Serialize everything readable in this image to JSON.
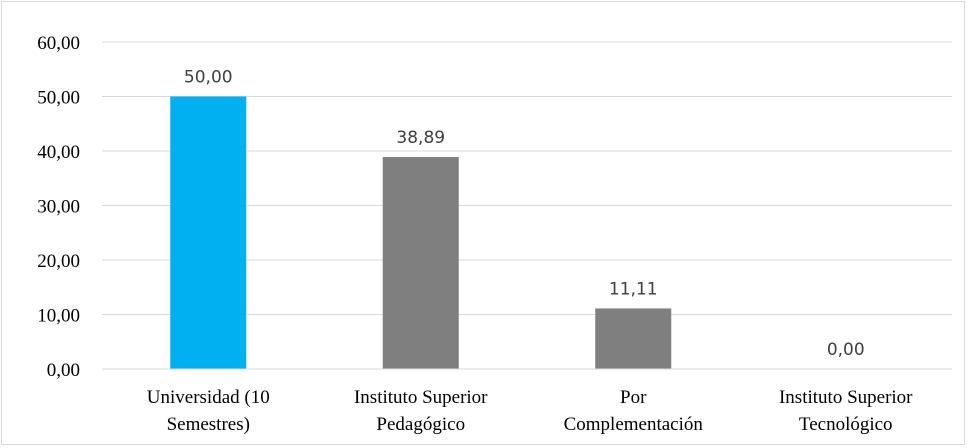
{
  "chart_data": {
    "type": "bar",
    "categories": [
      [
        "Universidad (10",
        "Semestres)"
      ],
      [
        "Instituto Superior",
        "Pedagógico"
      ],
      [
        "Por",
        "Complementación"
      ],
      [
        "Instituto Superior",
        "Tecnológico"
      ]
    ],
    "values": [
      50.0,
      38.89,
      11.11,
      0.0
    ],
    "data_labels": [
      "50,00",
      "38,89",
      "11,11",
      "0,00"
    ],
    "ylim": [
      0,
      60
    ],
    "yticks": [
      "0,00",
      "10,00",
      "20,00",
      "30,00",
      "40,00",
      "50,00",
      "60,00"
    ],
    "grid": true,
    "bar_colors": [
      "#00b0f0",
      "#7f7f7f",
      "#7f7f7f",
      "#7f7f7f"
    ],
    "gridline_color": "#d9d9d9",
    "title": "",
    "xlabel": "",
    "ylabel": ""
  }
}
